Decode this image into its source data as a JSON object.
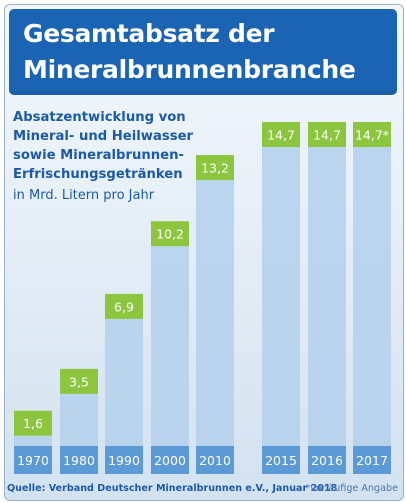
{
  "header": {
    "title_line1": "Gesamtabsatz der",
    "title_line2": "Mineralbrunnenbranche"
  },
  "intro": {
    "lines": [
      "Absatzentwicklung von",
      "Mineral- und Heilwasser",
      "sowie Mineralbrunnen-",
      "Erfrischungsgetränken"
    ],
    "unit": "in Mrd. Litern pro Jahr"
  },
  "colors": {
    "title_bg": "#1b64b4",
    "value_box": "#8cc63f",
    "bar_fill": "#b4d0ec",
    "year_box": "#5c9ad6",
    "text_blue": "#1b5aa6"
  },
  "chart_data": {
    "type": "bar",
    "categories": [
      "1970",
      "1980",
      "1990",
      "2000",
      "2010",
      "2015",
      "2016",
      "2017"
    ],
    "values": [
      1.6,
      3.5,
      6.9,
      10.2,
      13.2,
      14.7,
      14.7,
      14.7
    ],
    "value_labels": [
      "1,6",
      "3,5",
      "6,9",
      "10,2",
      "13,2",
      "14,7",
      "14,7",
      "14,7*"
    ],
    "ylabel": "in Mrd. Litern pro Jahr",
    "ylim": [
      0,
      14.7
    ],
    "grid": false,
    "legend": "none"
  },
  "footer": {
    "source": "Quelle: Verband Deutscher Mineralbrunnen e.V., Januar 2018",
    "footnote": "*vorläufige Angabe"
  }
}
